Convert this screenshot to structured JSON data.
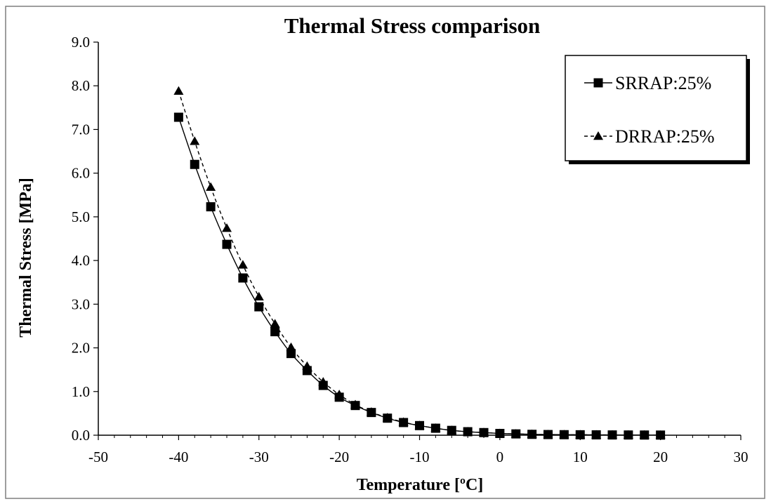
{
  "chart_data": {
    "type": "line",
    "title": "Thermal Stress comparison",
    "xlabel": "Temperature [ºC]",
    "ylabel": "Thermal Stress [MPa]",
    "xlim": [
      -50,
      30
    ],
    "ylim": [
      0,
      9
    ],
    "xticks": [
      -50,
      -40,
      -30,
      -20,
      -10,
      0,
      10,
      20,
      30
    ],
    "yticks": [
      0,
      1,
      2,
      3,
      4,
      5,
      6,
      7,
      8,
      9
    ],
    "xtick_labels": [
      "-50",
      "-40",
      "-30",
      "-20",
      "-10",
      "0",
      "10",
      "20",
      "30"
    ],
    "ytick_labels": [
      "0.0",
      "1.0",
      "2.0",
      "3.0",
      "4.0",
      "5.0",
      "6.0",
      "7.0",
      "8.0",
      "9.0"
    ],
    "grid": false,
    "legend_position": "top-right",
    "x": [
      -40,
      -38,
      -36,
      -34,
      -32,
      -30,
      -28,
      -26,
      -24,
      -22,
      -20,
      -18,
      -16,
      -14,
      -12,
      -10,
      -8,
      -6,
      -4,
      -2,
      0,
      2,
      4,
      6,
      8,
      10,
      12,
      14,
      16,
      18,
      20
    ],
    "series": [
      {
        "name": "SRRAP:25%",
        "marker": "square",
        "line": "solid",
        "values": [
          7.28,
          6.2,
          5.23,
          4.37,
          3.6,
          2.94,
          2.37,
          1.87,
          1.48,
          1.14,
          0.87,
          0.68,
          0.52,
          0.39,
          0.29,
          0.22,
          0.16,
          0.11,
          0.08,
          0.06,
          0.04,
          0.03,
          0.02,
          0.015,
          0.012,
          0.01,
          0.008,
          0.006,
          0.005,
          0.004,
          0.003
        ]
      },
      {
        "name": "DRRAP:25%",
        "marker": "triangle",
        "line": "dashed",
        "values": [
          7.88,
          6.73,
          5.68,
          4.74,
          3.9,
          3.17,
          2.55,
          2.01,
          1.58,
          1.22,
          0.93,
          0.7,
          0.53,
          0.4,
          0.3,
          0.22,
          0.16,
          0.11,
          0.08,
          0.06,
          0.04,
          0.03,
          0.02,
          0.015,
          0.012,
          0.01,
          0.008,
          0.006,
          0.005,
          0.004,
          0.003
        ]
      }
    ],
    "colors": {
      "line": "#000000",
      "background": "#ffffff"
    }
  }
}
